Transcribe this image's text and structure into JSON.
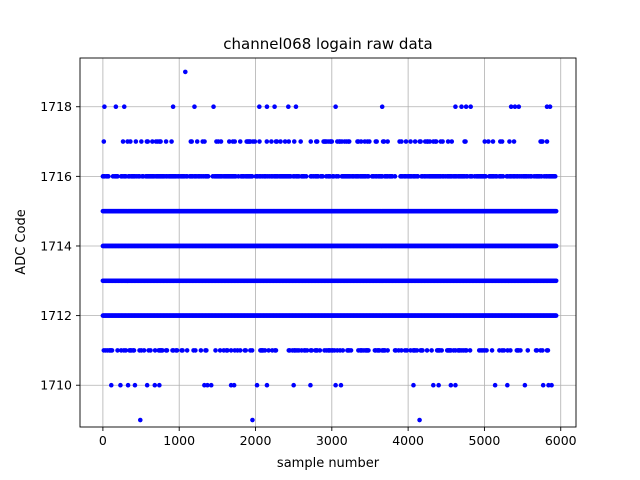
{
  "chart_data": {
    "type": "scatter",
    "title": "channel068 logain raw data",
    "xlabel": "sample number",
    "ylabel": "ADC Code",
    "xlim": [
      -300,
      6200
    ],
    "ylim": [
      1708.8,
      1719.4
    ],
    "xticks": [
      0,
      1000,
      2000,
      3000,
      4000,
      5000,
      6000
    ],
    "yticks": [
      1710,
      1712,
      1714,
      1716,
      1718
    ],
    "grid": true,
    "marker_color": "#0000ff",
    "series": [
      {
        "dense_levels": [
          {
            "y": 1712,
            "x_start": 0,
            "x_end": 5940
          },
          {
            "y": 1713,
            "x_start": 0,
            "x_end": 5940
          },
          {
            "y": 1714,
            "x_start": 0,
            "x_end": 5940
          },
          {
            "y": 1715,
            "x_start": 0,
            "x_end": 5940
          }
        ],
        "frequent_levels": [
          {
            "y": 1716,
            "x_start": 0,
            "x_end": 5940,
            "density": 0.7
          },
          {
            "y": 1711,
            "x_start": 0,
            "x_end": 5940,
            "density": 0.35
          },
          {
            "y": 1717,
            "x_start": 0,
            "x_end": 5940,
            "density": 0.2
          }
        ],
        "points": [
          [
            20,
            1718
          ],
          [
            170,
            1718
          ],
          [
            280,
            1718
          ],
          [
            920,
            1718
          ],
          [
            1200,
            1718
          ],
          [
            1450,
            1718
          ],
          [
            2050,
            1718
          ],
          [
            2150,
            1718
          ],
          [
            2250,
            1718
          ],
          [
            2430,
            1718
          ],
          [
            2530,
            1718
          ],
          [
            3050,
            1718
          ],
          [
            3660,
            1718
          ],
          [
            4620,
            1718
          ],
          [
            4700,
            1718
          ],
          [
            4760,
            1718
          ],
          [
            4820,
            1718
          ],
          [
            5350,
            1718
          ],
          [
            5400,
            1718
          ],
          [
            5450,
            1718
          ],
          [
            5820,
            1718
          ],
          [
            5860,
            1718
          ],
          [
            1080,
            1719
          ],
          [
            110,
            1710
          ],
          [
            230,
            1710
          ],
          [
            330,
            1710
          ],
          [
            420,
            1710
          ],
          [
            580,
            1710
          ],
          [
            680,
            1710
          ],
          [
            740,
            1710
          ],
          [
            1330,
            1710
          ],
          [
            1370,
            1710
          ],
          [
            1420,
            1710
          ],
          [
            1680,
            1710
          ],
          [
            1720,
            1710
          ],
          [
            2020,
            1710
          ],
          [
            2150,
            1710
          ],
          [
            2500,
            1710
          ],
          [
            2720,
            1710
          ],
          [
            3050,
            1710
          ],
          [
            3120,
            1710
          ],
          [
            4070,
            1710
          ],
          [
            4330,
            1710
          ],
          [
            4400,
            1710
          ],
          [
            4560,
            1710
          ],
          [
            4620,
            1710
          ],
          [
            5140,
            1710
          ],
          [
            5300,
            1710
          ],
          [
            5530,
            1710
          ],
          [
            5770,
            1710
          ],
          [
            5840,
            1710
          ],
          [
            5880,
            1710
          ],
          [
            490,
            1709
          ],
          [
            1960,
            1709
          ],
          [
            4150,
            1709
          ]
        ]
      }
    ]
  }
}
